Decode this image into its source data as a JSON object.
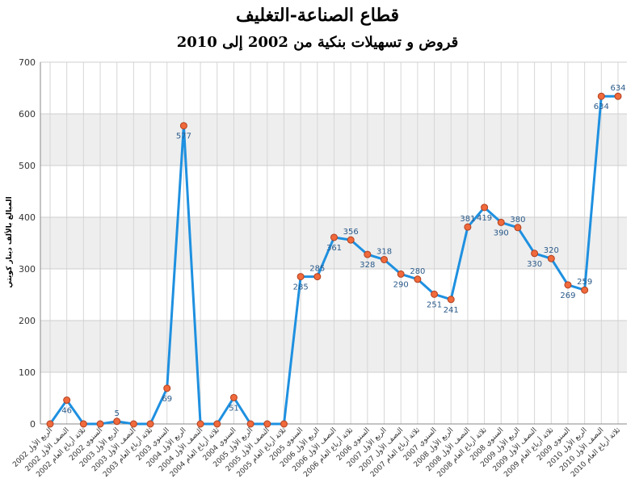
{
  "chart_data": {
    "type": "line",
    "title": "قطاع الصناعة-التغليف",
    "subtitle": "قروض و تسهيلات بنكية من 2002 إلى 2010",
    "ylabel": "المبالغ بالألف دينار كويتي",
    "xlabel": "",
    "ylim": [
      0,
      700
    ],
    "yticks": [
      0,
      100,
      200,
      300,
      400,
      500,
      600,
      700
    ],
    "grid": true,
    "legend": "none",
    "colors": {
      "line": "#1e90e0",
      "marker": "#f06a3c",
      "marker_edge": "#b04020",
      "band": "#eeeeee",
      "label": "#2a5a8a"
    },
    "categories": [
      "الربع الأول 2002",
      "النصف الأول 2002",
      "ثلاثة أرباع العام 2002",
      "السنوي 2002",
      "الربع الأول 2003",
      "النصف الأول 2003",
      "ثلاثة أرباع العام 2003",
      "السنوي 2003",
      "الربع الأول 2004",
      "النصف الأول 2004",
      "ثلاثة أرباع العام 2004",
      "السنوي 2004",
      "الربع الأول 2005",
      "النصف الأول 2005",
      "ثلاثة أرباع العام 2005",
      "السنوي 2005",
      "الربع الأول 2006",
      "النصف الأول 2006",
      "ثلاثة أرباع العام 2006",
      "السنوي 2006",
      "الربع الأول 2007",
      "النصف الأول 2007",
      "ثلاثة أرباع العام 2007",
      "السنوي 2007",
      "الربع الأول 2008",
      "النصف الأول 2008",
      "ثلاثة أرباع العام 2008",
      "السنوي 2008",
      "الربع الأول 2009",
      "النصف الأول 2009",
      "ثلاثة أرباع العام 2009",
      "السنوي 2009",
      "الربع الأول 2010",
      "النصف الأول 2010",
      "ثلاثة أرباع العام 2010"
    ],
    "values": [
      0,
      46,
      0,
      0,
      5,
      0,
      0,
      69,
      577,
      0,
      0,
      51,
      0,
      0,
      0,
      285,
      285,
      361,
      356,
      328,
      318,
      290,
      280,
      251,
      241,
      381,
      419,
      390,
      380,
      330,
      320,
      269,
      259,
      634,
      634
    ],
    "data_labels": [
      "",
      "46",
      "",
      "",
      "5",
      "",
      "",
      "69",
      "577",
      "",
      "",
      "51",
      "",
      "",
      "",
      "285",
      "285",
      "361",
      "356",
      "328",
      "318",
      "290",
      "280",
      "251",
      "241",
      "381",
      "419",
      "390",
      "380",
      "330",
      "320",
      "269",
      "259",
      "634",
      "634"
    ]
  }
}
